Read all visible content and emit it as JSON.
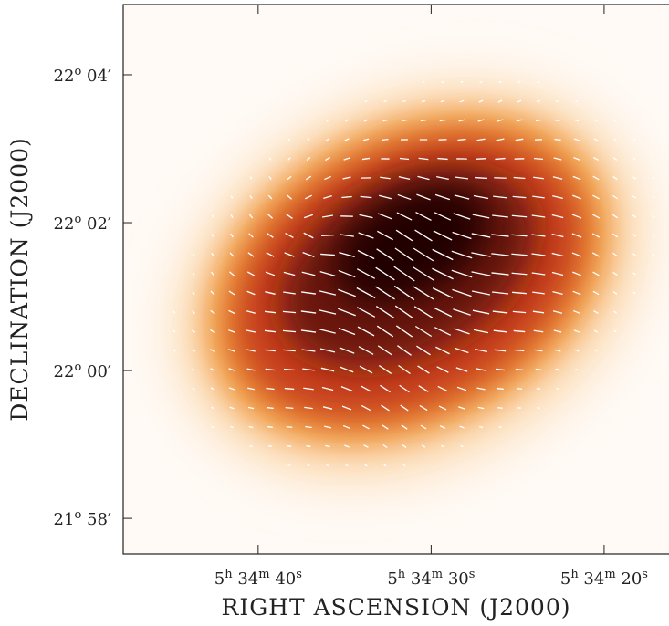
{
  "chart_data": {
    "type": "image",
    "xlabel": "RIGHT ASCENSION (J2000)",
    "ylabel": "DECLINATION (J2000)",
    "xlim": [
      47.8,
      16.25
    ],
    "xticks": [
      {
        "value": 40,
        "label": "5h 34m 40s"
      },
      {
        "value": 30,
        "label": "5h 34m 30s"
      },
      {
        "value": 20,
        "label": "5h 34m 20s"
      }
    ],
    "ylim": [
      -2.48,
      4.95
    ],
    "yticks": [
      {
        "value": 4,
        "label": "22o 04′"
      },
      {
        "value": 2,
        "label": "22o 02′"
      },
      {
        "value": 0,
        "label": "22o 00′"
      },
      {
        "value": -2,
        "label": "21o 58′"
      }
    ]
  }
}
